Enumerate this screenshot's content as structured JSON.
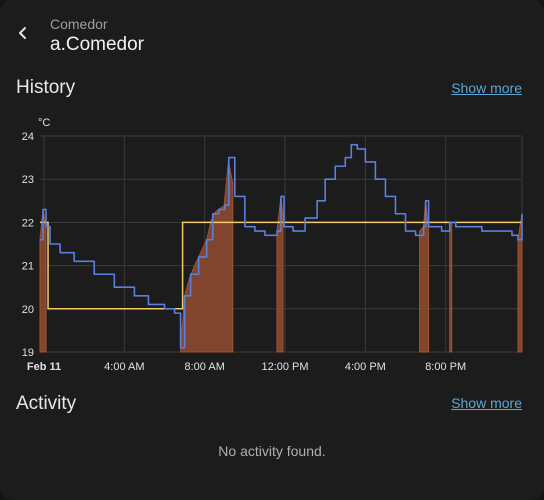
{
  "header": {
    "subtitle": "Comedor",
    "title": "a.Comedor"
  },
  "history": {
    "title": "History",
    "show_more": "Show more"
  },
  "activity": {
    "title": "Activity",
    "show_more": "Show more",
    "empty": "No activity found."
  },
  "colors": {
    "temperature_line": "#5b7fde",
    "setpoint_line": "#f2cc6b",
    "heating_fill": "#8c4a2f"
  },
  "chart_data": {
    "type": "line",
    "unit_label": "°C",
    "ylim": [
      19,
      24
    ],
    "y_ticks": [
      19,
      20,
      21,
      22,
      23,
      24
    ],
    "xlim_hours": [
      -0.2,
      23.8
    ],
    "x_ticks": [
      {
        "label": "Feb 11",
        "hour": 0,
        "bold": true
      },
      {
        "label": "4:00 AM",
        "hour": 4
      },
      {
        "label": "8:00 AM",
        "hour": 8
      },
      {
        "label": "12:00 PM",
        "hour": 12
      },
      {
        "label": "4:00 PM",
        "hour": 16
      },
      {
        "label": "8:00 PM",
        "hour": 20
      }
    ],
    "grid": true,
    "series": [
      {
        "name": "",
        "role": "current_temperature",
        "points": [
          [
            -0.2,
            21.6
          ],
          [
            -0.05,
            22.3
          ],
          [
            0.1,
            21.9
          ],
          [
            0.3,
            21.5
          ],
          [
            0.8,
            21.3
          ],
          [
            1.5,
            21.1
          ],
          [
            2.5,
            20.8
          ],
          [
            3.5,
            20.5
          ],
          [
            4.5,
            20.3
          ],
          [
            5.2,
            20.1
          ],
          [
            6.0,
            20.0
          ],
          [
            6.5,
            19.9
          ],
          [
            6.8,
            19.1
          ],
          [
            7.0,
            20.3
          ],
          [
            7.3,
            20.8
          ],
          [
            7.7,
            21.2
          ],
          [
            8.1,
            21.6
          ],
          [
            8.4,
            22.2
          ],
          [
            8.7,
            22.3
          ],
          [
            9.0,
            22.4
          ],
          [
            9.2,
            23.5
          ],
          [
            9.5,
            22.6
          ],
          [
            10.0,
            21.9
          ],
          [
            10.5,
            21.8
          ],
          [
            11.0,
            21.7
          ],
          [
            11.6,
            21.8
          ],
          [
            11.8,
            22.6
          ],
          [
            11.95,
            21.9
          ],
          [
            12.4,
            21.8
          ],
          [
            13.0,
            22.1
          ],
          [
            13.6,
            22.5
          ],
          [
            14.0,
            23.0
          ],
          [
            14.5,
            23.3
          ],
          [
            15.0,
            23.5
          ],
          [
            15.3,
            23.8
          ],
          [
            15.6,
            23.7
          ],
          [
            16.0,
            23.4
          ],
          [
            16.5,
            23.0
          ],
          [
            17.0,
            22.6
          ],
          [
            17.5,
            22.2
          ],
          [
            18.0,
            21.8
          ],
          [
            18.5,
            21.7
          ],
          [
            18.9,
            21.9
          ],
          [
            19.0,
            22.5
          ],
          [
            19.15,
            21.9
          ],
          [
            19.8,
            21.8
          ],
          [
            20.2,
            22.0
          ],
          [
            20.5,
            21.9
          ],
          [
            21.0,
            21.9
          ],
          [
            21.8,
            21.8
          ],
          [
            22.5,
            21.8
          ],
          [
            23.3,
            21.7
          ],
          [
            23.6,
            21.6
          ],
          [
            23.8,
            22.2
          ]
        ]
      },
      {
        "name": "",
        "role": "target_temperature",
        "points": [
          [
            -0.2,
            22.0
          ],
          [
            0.2,
            22.0
          ],
          [
            0.2,
            20.0
          ],
          [
            6.9,
            20.0
          ],
          [
            6.9,
            22.0
          ],
          [
            23.8,
            22.0
          ]
        ]
      }
    ],
    "heating_periods": [
      [
        -0.2,
        0.1
      ],
      [
        6.8,
        9.4
      ],
      [
        11.6,
        11.9
      ],
      [
        18.7,
        19.15
      ],
      [
        20.2,
        20.3
      ],
      [
        23.6,
        23.8
      ]
    ]
  }
}
